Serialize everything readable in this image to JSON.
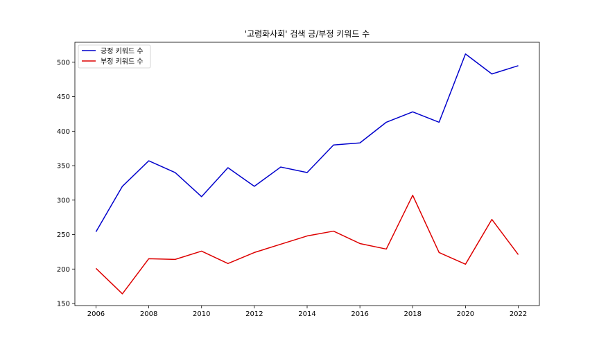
{
  "chart_data": {
    "type": "line",
    "title": "'고령화사회' 검색 긍/부정 키워드 수",
    "xlabel": "",
    "ylabel": "",
    "x": [
      2006,
      2007,
      2008,
      2009,
      2010,
      2011,
      2012,
      2013,
      2014,
      2015,
      2016,
      2017,
      2018,
      2019,
      2020,
      2021,
      2022
    ],
    "x_ticks": [
      2006,
      2008,
      2010,
      2012,
      2014,
      2016,
      2018,
      2020,
      2022
    ],
    "y_ticks": [
      150,
      200,
      250,
      300,
      350,
      400,
      450,
      500
    ],
    "xlim": [
      2005.2,
      2022.8
    ],
    "ylim": [
      147,
      529
    ],
    "grid": false,
    "legend_position": "top-left",
    "series": [
      {
        "name": "긍정 키워드 수",
        "color": "#0000cc",
        "values": [
          254,
          320,
          357,
          340,
          305,
          347,
          320,
          348,
          340,
          380,
          383,
          413,
          428,
          413,
          512,
          483,
          495
        ]
      },
      {
        "name": "부정 키워드 수",
        "color": "#dd0000",
        "values": [
          201,
          164,
          215,
          214,
          226,
          208,
          224,
          236,
          248,
          255,
          237,
          229,
          307,
          224,
          207,
          272,
          221
        ]
      }
    ]
  }
}
